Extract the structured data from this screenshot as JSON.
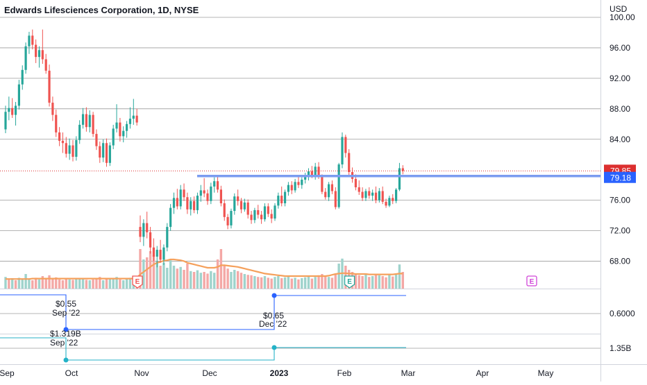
{
  "header": {
    "title": "Edwards Lifesciences Corporation, 1D, NYSE",
    "currency": "USD"
  },
  "colors": {
    "up": "#26a69a",
    "down": "#ef5350",
    "up_volume": "#9fd3cc",
    "down_volume": "#f4a8a6",
    "volume_ma": "#f5a05b",
    "support_line": "#7b9cf0",
    "last_price_label": "#dc2f2f",
    "support_label": "#2962ff",
    "dividend_line": "#2962ff",
    "revenue_line": "#24b2c7",
    "earnings_future": "#d044d8",
    "grid": "#9b9b9b",
    "text": "#131722"
  },
  "chart_data": {
    "type": "candlestick",
    "ylim": [
      64.5,
      100.0
    ],
    "y_ticks": [
      {
        "value": 100,
        "label": "100.00"
      },
      {
        "value": 96,
        "label": "96.00"
      },
      {
        "value": 92,
        "label": "92.00"
      },
      {
        "value": 88,
        "label": "88.00"
      },
      {
        "value": 84,
        "label": "84.00"
      },
      {
        "value": 76,
        "label": "76.00"
      },
      {
        "value": 72,
        "label": "72.00"
      },
      {
        "value": 68,
        "label": "68.00"
      }
    ],
    "x_ticks": [
      "Sep",
      "Oct",
      "Nov",
      "Dec",
      "2023",
      "Feb",
      "Mar",
      "Apr",
      "May"
    ],
    "price_labels": [
      {
        "name": "last-price",
        "value": 79.85,
        "label": "79.85"
      },
      {
        "name": "horizontal-level",
        "value": 79.18,
        "label": "79.18"
      }
    ],
    "candles": [
      [
        85.3,
        88.4,
        84.8,
        87.6
      ],
      [
        87.6,
        89.6,
        86.5,
        88.1
      ],
      [
        88.1,
        89.4,
        86.8,
        87.2
      ],
      [
        87.2,
        88.9,
        85.8,
        88.4
      ],
      [
        88.4,
        91.8,
        87.9,
        91.2
      ],
      [
        91.2,
        93.7,
        90.5,
        93.1
      ],
      [
        93.1,
        96.7,
        92.6,
        96.2
      ],
      [
        96.2,
        98.1,
        95.2,
        97.6
      ],
      [
        97.6,
        98.4,
        95.8,
        96.4
      ],
      [
        96.4,
        97.1,
        94.0,
        94.8
      ],
      [
        94.8,
        96.2,
        93.4,
        95.7
      ],
      [
        95.7,
        98.4,
        93.9,
        94.5
      ],
      [
        94.5,
        95.2,
        92.6,
        93.0
      ],
      [
        93.0,
        93.8,
        88.3,
        88.8
      ],
      [
        88.8,
        89.6,
        86.4,
        87.2
      ],
      [
        87.2,
        87.9,
        84.3,
        84.9
      ],
      [
        84.9,
        85.6,
        83.1,
        83.8
      ],
      [
        83.8,
        84.9,
        82.2,
        83.5
      ],
      [
        83.5,
        84.3,
        81.6,
        82.1
      ],
      [
        82.1,
        84.1,
        81.3,
        83.2
      ],
      [
        83.2,
        83.9,
        81.1,
        81.7
      ],
      [
        81.7,
        84.4,
        81.2,
        83.9
      ],
      [
        83.9,
        86.5,
        83.4,
        85.9
      ],
      [
        85.9,
        88.1,
        85.4,
        87.3
      ],
      [
        87.3,
        88.2,
        85.0,
        85.6
      ],
      [
        85.6,
        87.8,
        84.9,
        87.2
      ],
      [
        87.2,
        87.6,
        84.3,
        84.7
      ],
      [
        84.7,
        85.3,
        82.6,
        83.1
      ],
      [
        83.1,
        83.7,
        80.9,
        81.6
      ],
      [
        81.6,
        84.0,
        81.0,
        83.5
      ],
      [
        83.5,
        84.1,
        80.4,
        80.9
      ],
      [
        80.9,
        83.6,
        80.5,
        83.2
      ],
      [
        83.2,
        85.9,
        82.7,
        85.4
      ],
      [
        85.4,
        88.6,
        84.9,
        86.2
      ],
      [
        86.2,
        86.8,
        83.7,
        84.4
      ],
      [
        84.4,
        85.7,
        83.6,
        85.1
      ],
      [
        85.1,
        86.4,
        84.2,
        86.0
      ],
      [
        86.0,
        88.2,
        85.4,
        86.7
      ],
      [
        86.7,
        89.3,
        85.9,
        87.1
      ],
      [
        87.1,
        88.0,
        85.8,
        86.2
      ],
      [
        72.5,
        74.0,
        70.5,
        71.2
      ],
      [
        71.2,
        73.5,
        70.0,
        73.0
      ],
      [
        73.0,
        74.5,
        71.0,
        71.8
      ],
      [
        71.8,
        72.5,
        69.0,
        69.8
      ],
      [
        69.8,
        71.0,
        68.0,
        68.6
      ],
      [
        68.6,
        70.0,
        67.2,
        69.5
      ],
      [
        69.5,
        70.8,
        67.8,
        68.2
      ],
      [
        68.2,
        70.2,
        67.5,
        69.8
      ],
      [
        69.8,
        73.0,
        69.3,
        72.5
      ],
      [
        72.5,
        75.5,
        72.0,
        75.0
      ],
      [
        75.0,
        77.0,
        74.2,
        76.3
      ],
      [
        76.3,
        77.5,
        74.8,
        75.2
      ],
      [
        75.2,
        78.0,
        74.8,
        77.4
      ],
      [
        77.4,
        78.2,
        75.9,
        76.4
      ],
      [
        76.4,
        77.0,
        74.2,
        74.8
      ],
      [
        74.8,
        76.4,
        74.0,
        75.9
      ],
      [
        75.9,
        76.5,
        74.3,
        74.7
      ],
      [
        74.7,
        77.0,
        74.2,
        76.6
      ],
      [
        76.6,
        78.0,
        75.8,
        77.3
      ],
      [
        77.3,
        78.9,
        76.4,
        76.9
      ],
      [
        76.9,
        77.4,
        75.4,
        75.9
      ],
      [
        75.9,
        78.3,
        75.5,
        77.8
      ],
      [
        77.8,
        79.0,
        77.0,
        78.5
      ],
      [
        78.5,
        79.1,
        77.0,
        77.4
      ],
      [
        77.4,
        77.9,
        75.2,
        75.6
      ],
      [
        75.6,
        76.1,
        73.3,
        73.8
      ],
      [
        73.8,
        74.2,
        72.2,
        72.7
      ],
      [
        72.7,
        74.9,
        72.3,
        74.6
      ],
      [
        74.6,
        76.9,
        74.1,
        76.5
      ],
      [
        76.5,
        77.4,
        75.3,
        75.9
      ],
      [
        75.9,
        76.3,
        74.3,
        74.8
      ],
      [
        74.8,
        76.2,
        74.5,
        75.7
      ],
      [
        75.7,
        76.1,
        73.6,
        74.1
      ],
      [
        74.1,
        74.6,
        72.9,
        73.4
      ],
      [
        73.4,
        75.0,
        73.0,
        74.7
      ],
      [
        74.7,
        75.4,
        73.6,
        74.1
      ],
      [
        74.1,
        74.6,
        72.9,
        73.5
      ],
      [
        73.5,
        75.6,
        73.2,
        75.2
      ],
      [
        75.2,
        75.6,
        73.8,
        74.2
      ],
      [
        74.2,
        74.8,
        73.0,
        73.6
      ],
      [
        73.6,
        75.6,
        73.3,
        75.3
      ],
      [
        75.3,
        77.0,
        74.9,
        76.6
      ],
      [
        76.6,
        77.8,
        75.2,
        75.6
      ],
      [
        75.6,
        77.4,
        75.2,
        77.1
      ],
      [
        77.1,
        78.4,
        76.6,
        78.0
      ],
      [
        78.0,
        78.5,
        76.8,
        77.3
      ],
      [
        77.3,
        78.8,
        77.0,
        78.4
      ],
      [
        78.4,
        79.2,
        77.6,
        78.0
      ],
      [
        78.0,
        79.0,
        77.5,
        78.7
      ],
      [
        78.7,
        79.6,
        78.2,
        79.1
      ],
      [
        79.1,
        80.2,
        78.6,
        79.8
      ],
      [
        79.8,
        80.5,
        78.9,
        79.2
      ],
      [
        79.2,
        80.9,
        78.7,
        80.4
      ],
      [
        80.4,
        81.0,
        78.8,
        79.3
      ],
      [
        79.3,
        79.4,
        76.8,
        77.1
      ],
      [
        77.1,
        77.6,
        76.1,
        76.4
      ],
      [
        76.4,
        78.4,
        75.9,
        78.1
      ],
      [
        78.1,
        78.6,
        76.8,
        77.2
      ],
      [
        77.2,
        77.7,
        74.8,
        75.1
      ],
      [
        75.1,
        80.9,
        74.9,
        80.7
      ],
      [
        80.7,
        84.9,
        80.2,
        84.3
      ],
      [
        84.3,
        84.6,
        81.6,
        82.2
      ],
      [
        82.2,
        82.7,
        79.3,
        79.7
      ],
      [
        79.7,
        80.3,
        78.3,
        78.8
      ],
      [
        78.8,
        79.4,
        77.3,
        77.7
      ],
      [
        77.7,
        78.6,
        76.7,
        77.1
      ],
      [
        77.1,
        77.7,
        75.9,
        76.3
      ],
      [
        76.3,
        77.5,
        75.9,
        77.2
      ],
      [
        77.2,
        77.7,
        76.2,
        76.6
      ],
      [
        76.6,
        77.4,
        75.9,
        77.0
      ],
      [
        77.0,
        77.8,
        75.6,
        76.0
      ],
      [
        76.0,
        77.6,
        75.7,
        77.2
      ],
      [
        77.2,
        77.8,
        75.5,
        75.8
      ],
      [
        75.8,
        76.2,
        75.0,
        75.3
      ],
      [
        75.3,
        76.6,
        75.1,
        76.3
      ],
      [
        76.3,
        76.8,
        75.5,
        75.9
      ],
      [
        75.9,
        77.6,
        75.6,
        77.4
      ],
      [
        77.4,
        80.9,
        77.2,
        80.2
      ],
      [
        80.2,
        80.6,
        79.4,
        79.85
      ]
    ],
    "volume": [
      {
        "h": 0.28,
        "up": true
      },
      {
        "h": 0.22,
        "up": false
      },
      {
        "h": 0.25,
        "up": true
      },
      {
        "h": 0.2,
        "up": false
      },
      {
        "h": 0.26,
        "up": true
      },
      {
        "h": 0.22,
        "up": true
      },
      {
        "h": 0.35,
        "up": true
      },
      {
        "h": 0.24,
        "up": true
      },
      {
        "h": 0.2,
        "up": false
      },
      {
        "h": 0.26,
        "up": false
      },
      {
        "h": 0.22,
        "up": true
      },
      {
        "h": 0.3,
        "up": false
      },
      {
        "h": 0.24,
        "up": false
      },
      {
        "h": 0.32,
        "up": false
      },
      {
        "h": 0.25,
        "up": false
      },
      {
        "h": 0.27,
        "up": false
      },
      {
        "h": 0.22,
        "up": false
      },
      {
        "h": 0.2,
        "up": false
      },
      {
        "h": 0.24,
        "up": false
      },
      {
        "h": 0.22,
        "up": true
      },
      {
        "h": 0.21,
        "up": false
      },
      {
        "h": 0.24,
        "up": true
      },
      {
        "h": 0.23,
        "up": true
      },
      {
        "h": 0.25,
        "up": true
      },
      {
        "h": 0.21,
        "up": false
      },
      {
        "h": 0.2,
        "up": true
      },
      {
        "h": 0.22,
        "up": false
      },
      {
        "h": 0.24,
        "up": false
      },
      {
        "h": 0.28,
        "up": false
      },
      {
        "h": 0.2,
        "up": true
      },
      {
        "h": 0.25,
        "up": false
      },
      {
        "h": 0.24,
        "up": true
      },
      {
        "h": 0.23,
        "up": true
      },
      {
        "h": 0.28,
        "up": true
      },
      {
        "h": 0.22,
        "up": false
      },
      {
        "h": 0.2,
        "up": true
      },
      {
        "h": 0.24,
        "up": true
      },
      {
        "h": 0.26,
        "up": true
      },
      {
        "h": 0.3,
        "up": true
      },
      {
        "h": 0.26,
        "up": false
      },
      {
        "h": 0.95,
        "up": false
      },
      {
        "h": 0.7,
        "up": true
      },
      {
        "h": 0.75,
        "up": false
      },
      {
        "h": 0.9,
        "up": false
      },
      {
        "h": 0.8,
        "up": false
      },
      {
        "h": 0.65,
        "up": true
      },
      {
        "h": 0.55,
        "up": false
      },
      {
        "h": 0.62,
        "up": true
      },
      {
        "h": 0.5,
        "up": true
      },
      {
        "h": 0.68,
        "up": true
      },
      {
        "h": 0.55,
        "up": true
      },
      {
        "h": 0.48,
        "up": false
      },
      {
        "h": 0.52,
        "up": true
      },
      {
        "h": 0.45,
        "up": false
      },
      {
        "h": 0.6,
        "up": false
      },
      {
        "h": 0.42,
        "up": true
      },
      {
        "h": 0.4,
        "up": false
      },
      {
        "h": 0.44,
        "up": true
      },
      {
        "h": 0.38,
        "up": true
      },
      {
        "h": 0.4,
        "up": false
      },
      {
        "h": 0.36,
        "up": false
      },
      {
        "h": 0.42,
        "up": true
      },
      {
        "h": 0.38,
        "up": true
      },
      {
        "h": 0.7,
        "up": false
      },
      {
        "h": 0.95,
        "up": false
      },
      {
        "h": 0.55,
        "up": false
      },
      {
        "h": 0.48,
        "up": false
      },
      {
        "h": 0.4,
        "up": true
      },
      {
        "h": 0.45,
        "up": true
      },
      {
        "h": 0.42,
        "up": false
      },
      {
        "h": 0.38,
        "up": false
      },
      {
        "h": 0.35,
        "up": true
      },
      {
        "h": 0.33,
        "up": false
      },
      {
        "h": 0.32,
        "up": false
      },
      {
        "h": 0.3,
        "up": true
      },
      {
        "h": 0.28,
        "up": false
      },
      {
        "h": 0.27,
        "up": false
      },
      {
        "h": 0.3,
        "up": true
      },
      {
        "h": 0.26,
        "up": false
      },
      {
        "h": 0.24,
        "up": false
      },
      {
        "h": 0.28,
        "up": true
      },
      {
        "h": 0.3,
        "up": true
      },
      {
        "h": 0.25,
        "up": false
      },
      {
        "h": 0.27,
        "up": true
      },
      {
        "h": 0.29,
        "up": true
      },
      {
        "h": 0.24,
        "up": false
      },
      {
        "h": 0.26,
        "up": true
      },
      {
        "h": 0.22,
        "up": false
      },
      {
        "h": 0.25,
        "up": true
      },
      {
        "h": 0.27,
        "up": true
      },
      {
        "h": 0.3,
        "up": true
      },
      {
        "h": 0.24,
        "up": false
      },
      {
        "h": 0.28,
        "up": true
      },
      {
        "h": 0.32,
        "up": false
      },
      {
        "h": 0.35,
        "up": false
      },
      {
        "h": 0.3,
        "up": false
      },
      {
        "h": 0.28,
        "up": true
      },
      {
        "h": 0.26,
        "up": false
      },
      {
        "h": 0.34,
        "up": false
      },
      {
        "h": 0.6,
        "up": true
      },
      {
        "h": 0.72,
        "up": true
      },
      {
        "h": 0.55,
        "up": false
      },
      {
        "h": 0.45,
        "up": false
      },
      {
        "h": 0.4,
        "up": false
      },
      {
        "h": 0.36,
        "up": false
      },
      {
        "h": 0.32,
        "up": false
      },
      {
        "h": 0.3,
        "up": false
      },
      {
        "h": 0.34,
        "up": true
      },
      {
        "h": 0.28,
        "up": false
      },
      {
        "h": 0.3,
        "up": true
      },
      {
        "h": 0.35,
        "up": false
      },
      {
        "h": 0.32,
        "up": true
      },
      {
        "h": 0.3,
        "up": false
      },
      {
        "h": 0.27,
        "up": false
      },
      {
        "h": 0.33,
        "up": true
      },
      {
        "h": 0.29,
        "up": false
      },
      {
        "h": 0.36,
        "up": true
      },
      {
        "h": 0.58,
        "up": true
      },
      {
        "h": 0.4,
        "up": false
      }
    ],
    "volume_ma": [
      0.23,
      0.23,
      0.23,
      0.23,
      0.23,
      0.23,
      0.23,
      0.23,
      0.24,
      0.24,
      0.24,
      0.24,
      0.24,
      0.24,
      0.24,
      0.24,
      0.24,
      0.24,
      0.24,
      0.24,
      0.24,
      0.24,
      0.24,
      0.24,
      0.24,
      0.24,
      0.24,
      0.24,
      0.24,
      0.24,
      0.24,
      0.24,
      0.24,
      0.24,
      0.24,
      0.24,
      0.24,
      0.24,
      0.24,
      0.26,
      0.34,
      0.4,
      0.46,
      0.52,
      0.58,
      0.62,
      0.64,
      0.67,
      0.68,
      0.7,
      0.7,
      0.69,
      0.68,
      0.66,
      0.62,
      0.6,
      0.58,
      0.56,
      0.54,
      0.52,
      0.5,
      0.5,
      0.5,
      0.52,
      0.56,
      0.56,
      0.55,
      0.54,
      0.53,
      0.52,
      0.5,
      0.48,
      0.46,
      0.44,
      0.42,
      0.4,
      0.38,
      0.36,
      0.35,
      0.34,
      0.33,
      0.32,
      0.31,
      0.3,
      0.3,
      0.3,
      0.3,
      0.3,
      0.3,
      0.3,
      0.3,
      0.3,
      0.3,
      0.3,
      0.3,
      0.3,
      0.31,
      0.33,
      0.35,
      0.36,
      0.37,
      0.37,
      0.36,
      0.36,
      0.35,
      0.35,
      0.35,
      0.35,
      0.34,
      0.34,
      0.34,
      0.34,
      0.34,
      0.34,
      0.34,
      0.34,
      0.35,
      0.36,
      0.36
    ],
    "earnings_markers": [
      {
        "label": "E",
        "index": 40,
        "kind": "past-down"
      },
      {
        "label": "E",
        "index": 103,
        "kind": "past-up"
      },
      {
        "label": "E",
        "kind": "future"
      }
    ],
    "dividend_axis_label": "0.6000",
    "revenue_axis_label": "1.35B",
    "dividend_annotations": [
      {
        "value": "$0.55",
        "period": "Sep '22"
      },
      {
        "value": "$0.65",
        "period": "Dec '22"
      }
    ],
    "revenue_annotations": [
      {
        "value": "$1.319B",
        "period": "Sep '22"
      }
    ]
  }
}
